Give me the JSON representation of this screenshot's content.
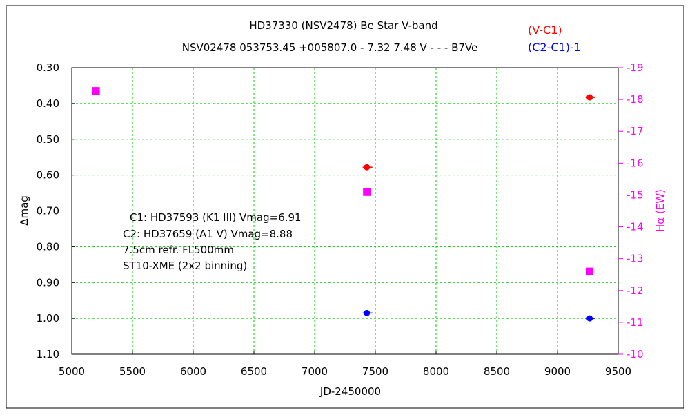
{
  "chart_data": {
    "type": "scatter",
    "title": "HD37330 (NSV2478)    Be Star    V-band",
    "subtitle": "NSV02478 053753.45 +005807.0 - 7.32 7.48 V - - - B7Ve",
    "xlabel": "JD-2450000",
    "ylabel": "Δmag",
    "y2label": "Hα (EW)",
    "xlim": [
      5000,
      9500
    ],
    "ylim": [
      0.3,
      1.1
    ],
    "y_inverted": true,
    "y2lim": [
      -19,
      -10
    ],
    "y2_inverted": true,
    "grid": true,
    "x_ticks": [
      "5000",
      "5500",
      "6000",
      "6500",
      "7000",
      "7500",
      "8000",
      "8500",
      "9000",
      "9500"
    ],
    "y_ticks": [
      "0.30",
      "0.40",
      "0.50",
      "0.60",
      "0.70",
      "0.80",
      "0.90",
      "1.00",
      "1.10"
    ],
    "y2_ticks": [
      "-19",
      "-18",
      "-17",
      "-16",
      "-15",
      "-14",
      "-13",
      "-12",
      "-11",
      "-10"
    ],
    "legend": [
      {
        "label": "(V-C1)",
        "color": "#ff0000"
      },
      {
        "label": "(C2-C1)-1",
        "color": "#0000ff"
      }
    ],
    "annotations": [
      "C1: HD37593 (K1 III)  Vmag=6.91",
      "C2: HD37659 (A1 V)  Vmag=8.88",
      "7.5cm refr. FL500mm",
      "ST10-XME (2x2 binning)"
    ],
    "series": [
      {
        "name": "(V-C1)",
        "axis": "left",
        "marker": "circle",
        "color": "#ff0000",
        "x": [
          7430,
          9265
        ],
        "y": [
          0.578,
          0.383
        ]
      },
      {
        "name": "(C2-C1)-1",
        "axis": "left",
        "marker": "circle",
        "color": "#0000ff",
        "x": [
          7430,
          9265
        ],
        "y": [
          0.985,
          1.0
        ]
      },
      {
        "axis": "right",
        "marker": "square",
        "color": "#ff00ff",
        "x": [
          5200,
          7430,
          9265
        ],
        "y": [
          -18.27,
          -15.09,
          -12.6
        ]
      }
    ]
  }
}
